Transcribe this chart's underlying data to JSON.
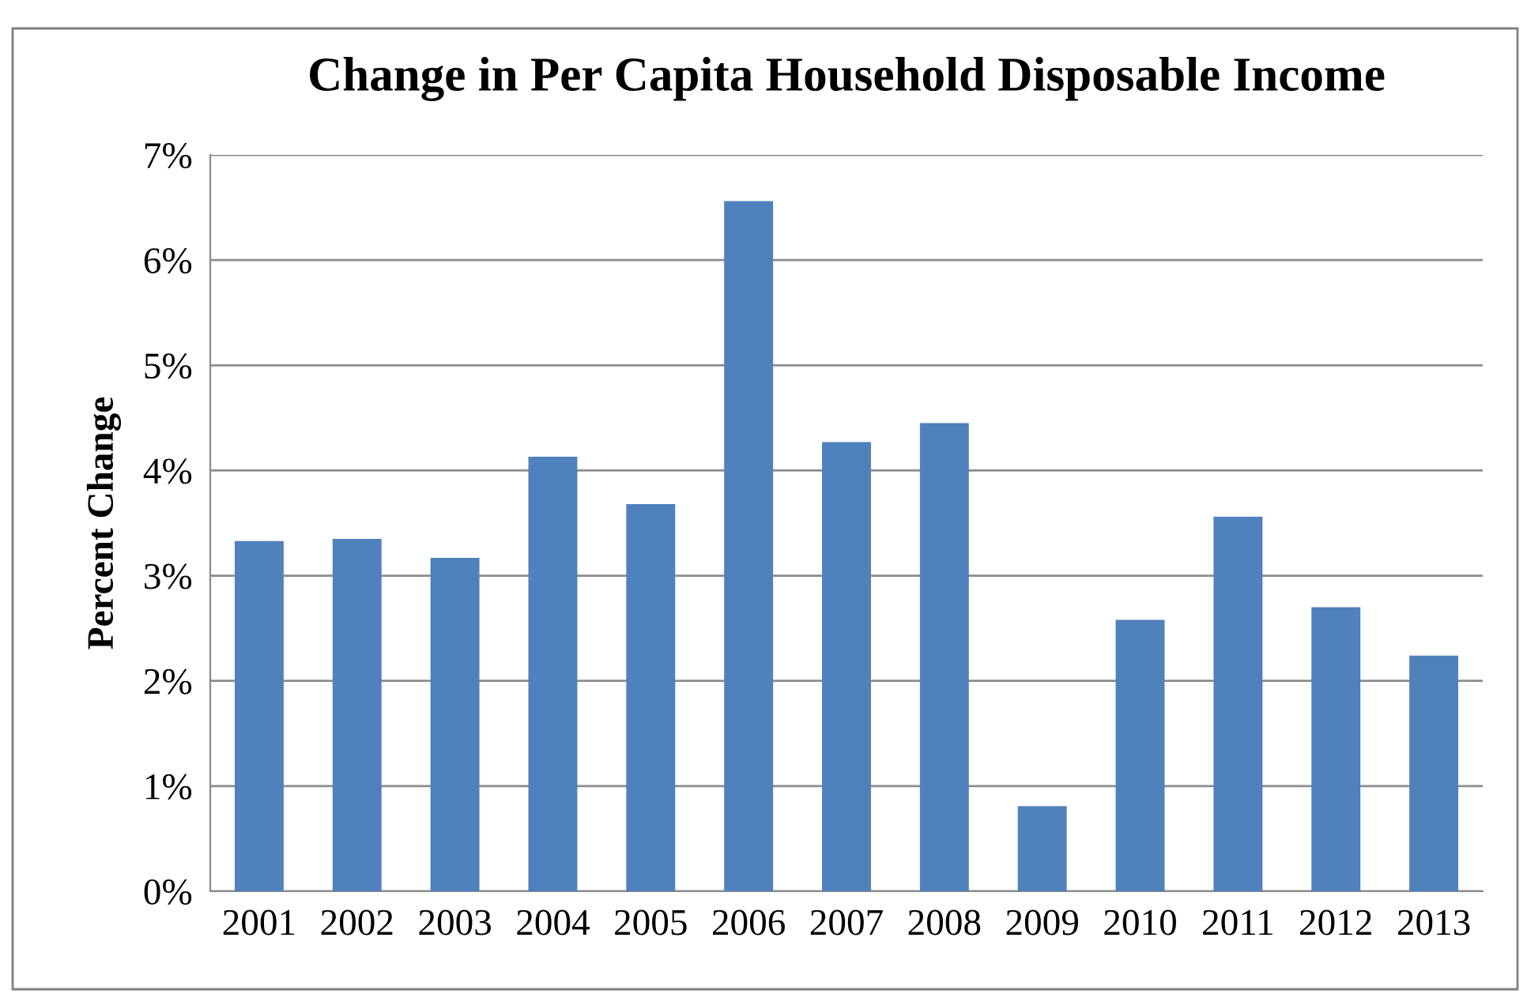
{
  "chart_data": {
    "type": "bar",
    "title": "Change in Per Capita Household Disposable Income",
    "ylabel": "Percent Change",
    "categories": [
      "2001",
      "2002",
      "2003",
      "2004",
      "2005",
      "2006",
      "2007",
      "2008",
      "2009",
      "2010",
      "2011",
      "2012",
      "2013"
    ],
    "values": [
      3.33,
      3.35,
      3.17,
      4.13,
      3.68,
      6.56,
      4.27,
      4.45,
      0.81,
      2.58,
      3.56,
      2.7,
      2.24
    ],
    "color": "#4f81bd",
    "ylim": [
      0,
      7
    ],
    "yticks": [
      {
        "value": 0,
        "label": "0%"
      },
      {
        "value": 1,
        "label": "1%"
      },
      {
        "value": 2,
        "label": "2%"
      },
      {
        "value": 3,
        "label": "3%"
      },
      {
        "value": 4,
        "label": "4%"
      },
      {
        "value": 5,
        "label": "5%"
      },
      {
        "value": 6,
        "label": "6%"
      },
      {
        "value": 7,
        "label": "7%"
      }
    ],
    "grid": "y",
    "legend": false
  }
}
